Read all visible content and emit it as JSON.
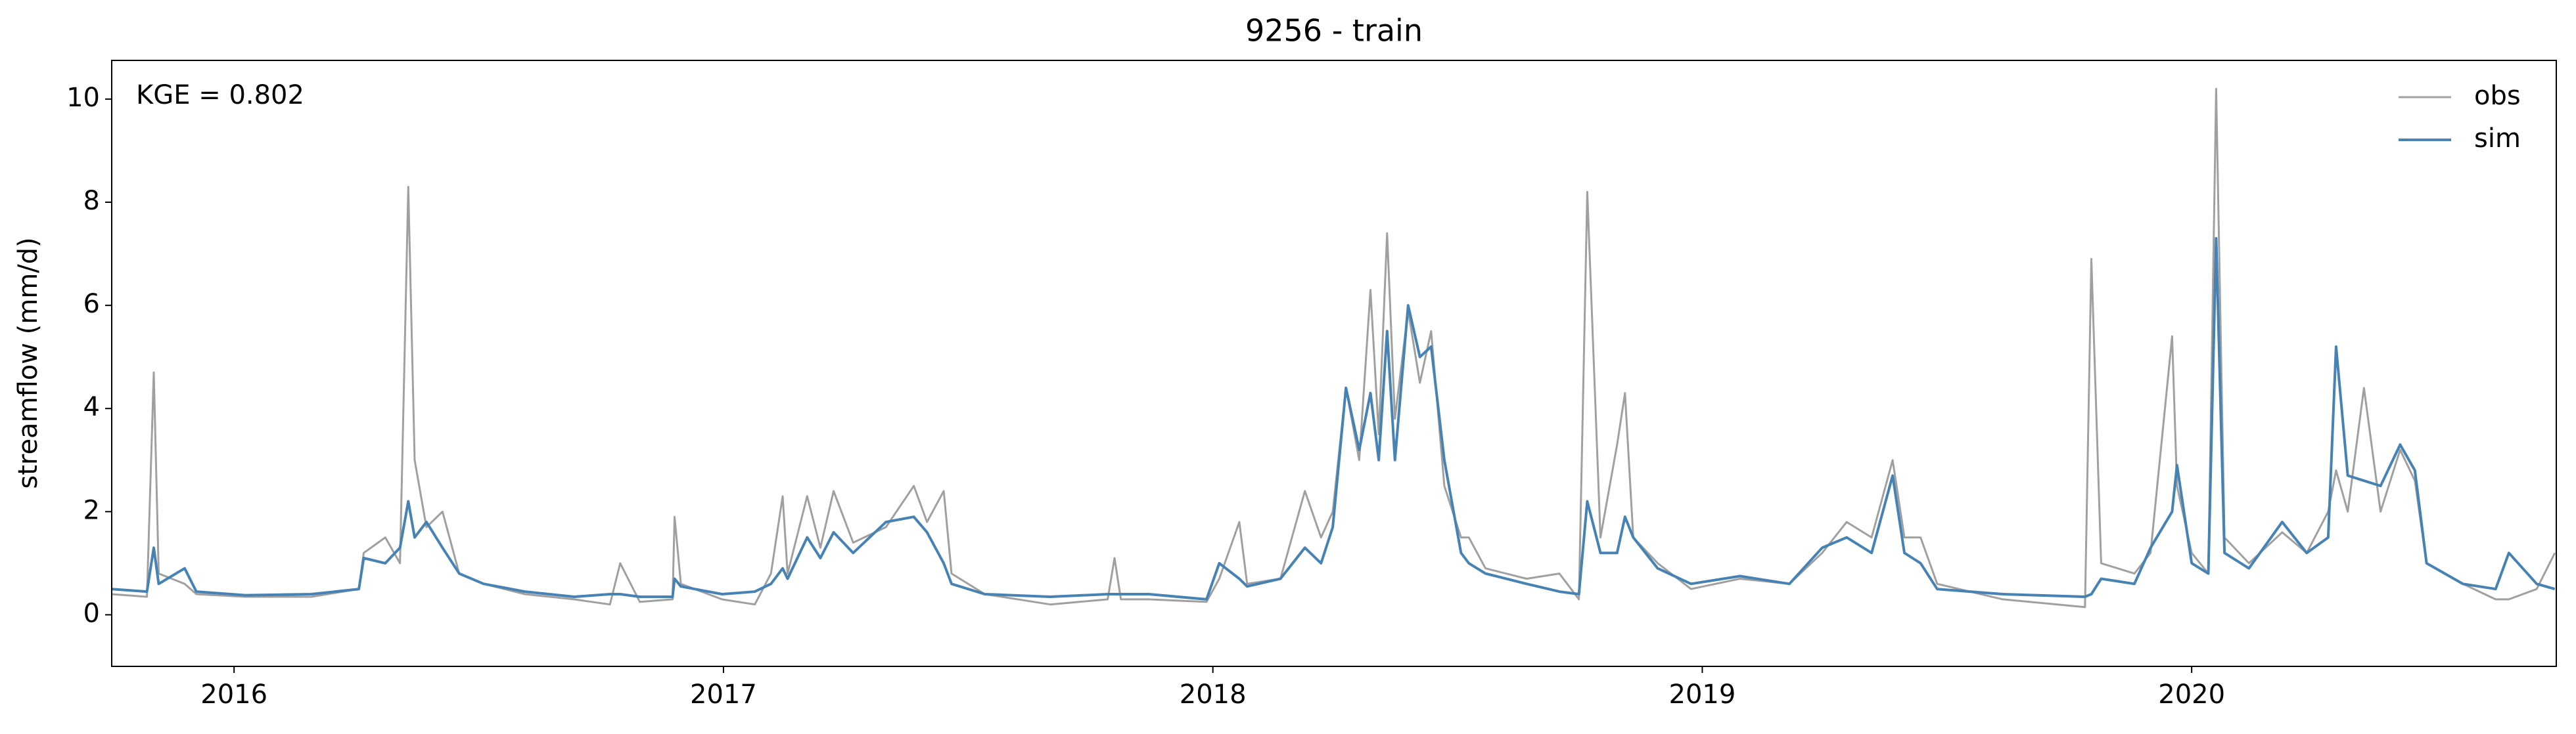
{
  "chart_data": {
    "type": "line",
    "title": "9256 - train",
    "ylabel": "streamflow (mm/d)",
    "annotation": "KGE = 0.802",
    "x": [
      2015.75,
      2015.822,
      2015.836,
      2015.846,
      2015.899,
      2015.923,
      2016.023,
      2016.158,
      2016.255,
      2016.265,
      2016.309,
      2016.339,
      2016.356,
      2016.369,
      2016.393,
      2016.426,
      2016.46,
      2016.51,
      2016.594,
      2016.695,
      2016.768,
      2016.789,
      2016.829,
      2016.896,
      2016.9,
      2016.913,
      2016.997,
      2017.064,
      2017.097,
      2017.121,
      2017.131,
      2017.171,
      2017.198,
      2017.225,
      2017.265,
      2017.332,
      2017.389,
      2017.416,
      2017.45,
      2017.466,
      2017.534,
      2017.668,
      2017.785,
      2017.799,
      2017.812,
      2017.869,
      2017.987,
      2018.013,
      2018.054,
      2018.07,
      2018.138,
      2018.188,
      2018.221,
      2018.245,
      2018.272,
      2018.299,
      2018.322,
      2018.339,
      2018.356,
      2018.372,
      2018.399,
      2018.423,
      2018.446,
      2018.473,
      2018.507,
      2018.523,
      2018.557,
      2018.641,
      2018.708,
      2018.748,
      2018.765,
      2018.792,
      2018.826,
      2018.842,
      2018.859,
      2018.909,
      2018.977,
      2019.077,
      2019.178,
      2019.245,
      2019.295,
      2019.346,
      2019.389,
      2019.413,
      2019.446,
      2019.48,
      2019.614,
      2019.782,
      2019.795,
      2019.815,
      2019.883,
      2019.916,
      2019.96,
      2019.97,
      2020.0,
      2020.034,
      2020.05,
      2020.067,
      2020.117,
      2020.185,
      2020.235,
      2020.279,
      2020.295,
      2020.319,
      2020.352,
      2020.386,
      2020.426,
      2020.456,
      2020.48,
      2020.554,
      2020.621,
      2020.648,
      2020.705,
      2020.742
    ],
    "series": [
      {
        "name": "obs",
        "color": "#a0a0a0",
        "values": [
          0.4,
          0.35,
          4.7,
          0.8,
          0.6,
          0.4,
          0.35,
          0.35,
          0.5,
          1.2,
          1.5,
          1.0,
          8.3,
          3.0,
          1.7,
          2.0,
          0.8,
          0.6,
          0.4,
          0.3,
          0.2,
          1.0,
          0.25,
          0.3,
          1.9,
          0.6,
          0.3,
          0.2,
          0.8,
          2.3,
          0.8,
          2.3,
          1.3,
          2.4,
          1.4,
          1.7,
          2.5,
          1.8,
          2.4,
          0.8,
          0.4,
          0.2,
          0.3,
          1.1,
          0.3,
          0.3,
          0.25,
          0.7,
          1.8,
          0.6,
          0.7,
          2.4,
          1.5,
          2.0,
          4.4,
          3.0,
          6.3,
          3.5,
          7.4,
          3.8,
          5.9,
          4.5,
          5.5,
          2.5,
          1.5,
          1.5,
          0.9,
          0.7,
          0.8,
          0.3,
          8.2,
          1.5,
          3.3,
          4.3,
          1.5,
          1.0,
          0.5,
          0.7,
          0.6,
          1.2,
          1.8,
          1.5,
          3.0,
          1.5,
          1.5,
          0.6,
          0.3,
          0.15,
          6.9,
          1.0,
          0.8,
          1.2,
          5.4,
          2.5,
          1.2,
          0.8,
          10.2,
          1.5,
          1.0,
          1.6,
          1.2,
          2.0,
          2.8,
          2.0,
          4.4,
          2.0,
          3.2,
          2.6,
          1.0,
          0.6,
          0.3,
          0.3,
          0.5,
          1.2
        ]
      },
      {
        "name": "sim",
        "color": "#4682b4",
        "values": [
          0.5,
          0.45,
          1.3,
          0.6,
          0.9,
          0.45,
          0.38,
          0.4,
          0.5,
          1.1,
          1.0,
          1.3,
          2.2,
          1.5,
          1.8,
          1.3,
          0.8,
          0.6,
          0.45,
          0.35,
          0.4,
          0.4,
          0.35,
          0.35,
          0.7,
          0.55,
          0.4,
          0.45,
          0.6,
          0.9,
          0.7,
          1.5,
          1.1,
          1.6,
          1.2,
          1.8,
          1.9,
          1.6,
          1.0,
          0.6,
          0.4,
          0.35,
          0.4,
          0.4,
          0.4,
          0.4,
          0.3,
          1.0,
          0.7,
          0.55,
          0.7,
          1.3,
          1.0,
          1.7,
          4.4,
          3.2,
          4.3,
          3.0,
          5.5,
          3.0,
          6.0,
          5.0,
          5.2,
          3.0,
          1.2,
          1.0,
          0.8,
          0.6,
          0.45,
          0.4,
          2.2,
          1.2,
          1.2,
          1.9,
          1.5,
          0.9,
          0.6,
          0.75,
          0.6,
          1.3,
          1.5,
          1.2,
          2.7,
          1.2,
          1.0,
          0.5,
          0.4,
          0.35,
          0.4,
          0.7,
          0.6,
          1.3,
          2.0,
          2.9,
          1.0,
          0.8,
          7.3,
          1.2,
          0.9,
          1.8,
          1.2,
          1.5,
          5.2,
          2.7,
          2.6,
          2.5,
          3.3,
          2.8,
          1.0,
          0.6,
          0.5,
          1.2,
          0.6,
          0.5
        ]
      }
    ],
    "xlim": [
      2015.75,
      2020.745
    ],
    "xticks": [
      2016,
      2017,
      2018,
      2019,
      2020
    ],
    "ylim": [
      -1,
      10.75
    ],
    "yticks": [
      0,
      2,
      4,
      6,
      8,
      10
    ],
    "legend": "upper right"
  }
}
